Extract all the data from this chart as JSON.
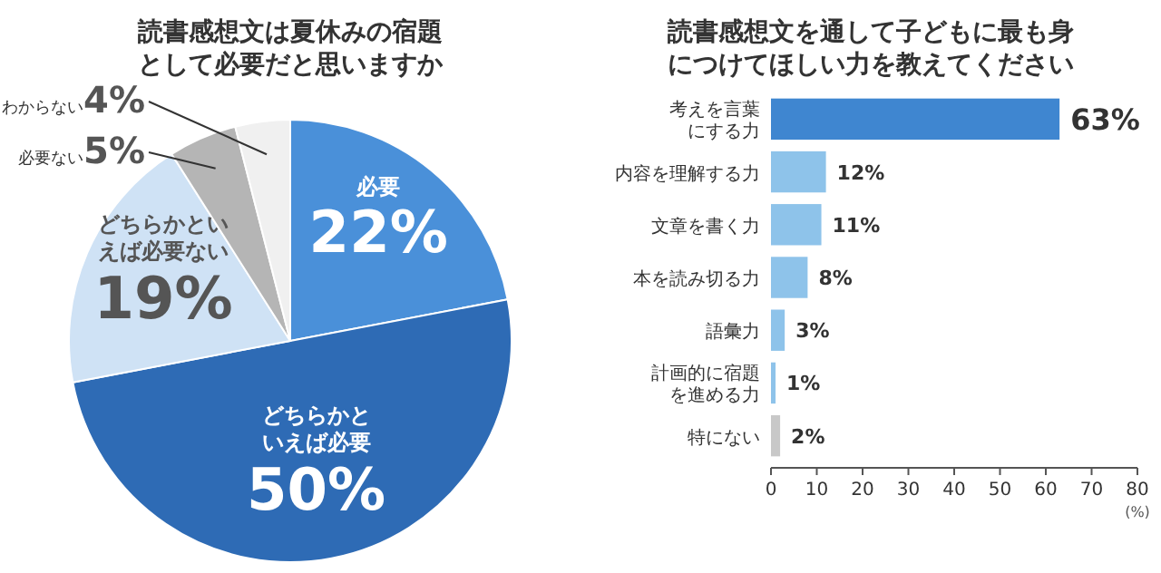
{
  "chart_data": [
    {
      "type": "pie",
      "title": "読書感想文は夏休みの宿題として必要だと思いますか",
      "categories": [
        "必要",
        "どちらかといえば必要",
        "どちらかといえば必要ない",
        "必要ない",
        "わからない"
      ],
      "values": [
        22,
        50,
        19,
        5,
        4
      ],
      "value_labels": [
        "22%",
        "50%",
        "19%",
        "5%",
        "4%"
      ],
      "colors": [
        "#4a90d9",
        "#2e6bb5",
        "#cfe2f5",
        "#b5b5b5",
        "#f0f0f0"
      ]
    },
    {
      "type": "bar",
      "orientation": "horizontal",
      "title": "読書感想文を通して子どもに最も身につけてほしい力を教えてください",
      "categories": [
        "考えを言葉にする力",
        "内容を理解する力",
        "文章を書く力",
        "本を読み切る力",
        "語彙力",
        "計画的に宿題を進める力",
        "特にない"
      ],
      "values": [
        63,
        12,
        11,
        8,
        3,
        1,
        2
      ],
      "value_labels": [
        "63%",
        "12%",
        "11%",
        "8%",
        "3%",
        "1%",
        "2%"
      ],
      "colors": [
        "#3f86d0",
        "#8ec3ea",
        "#8ec3ea",
        "#8ec3ea",
        "#8ec3ea",
        "#8ec3ea",
        "#c8c8c8"
      ],
      "xlim": [
        0,
        80
      ],
      "xticks": [
        0,
        10,
        20,
        30,
        40,
        50,
        60,
        70,
        80
      ],
      "xlabel": "(%)",
      "grid": false
    }
  ]
}
